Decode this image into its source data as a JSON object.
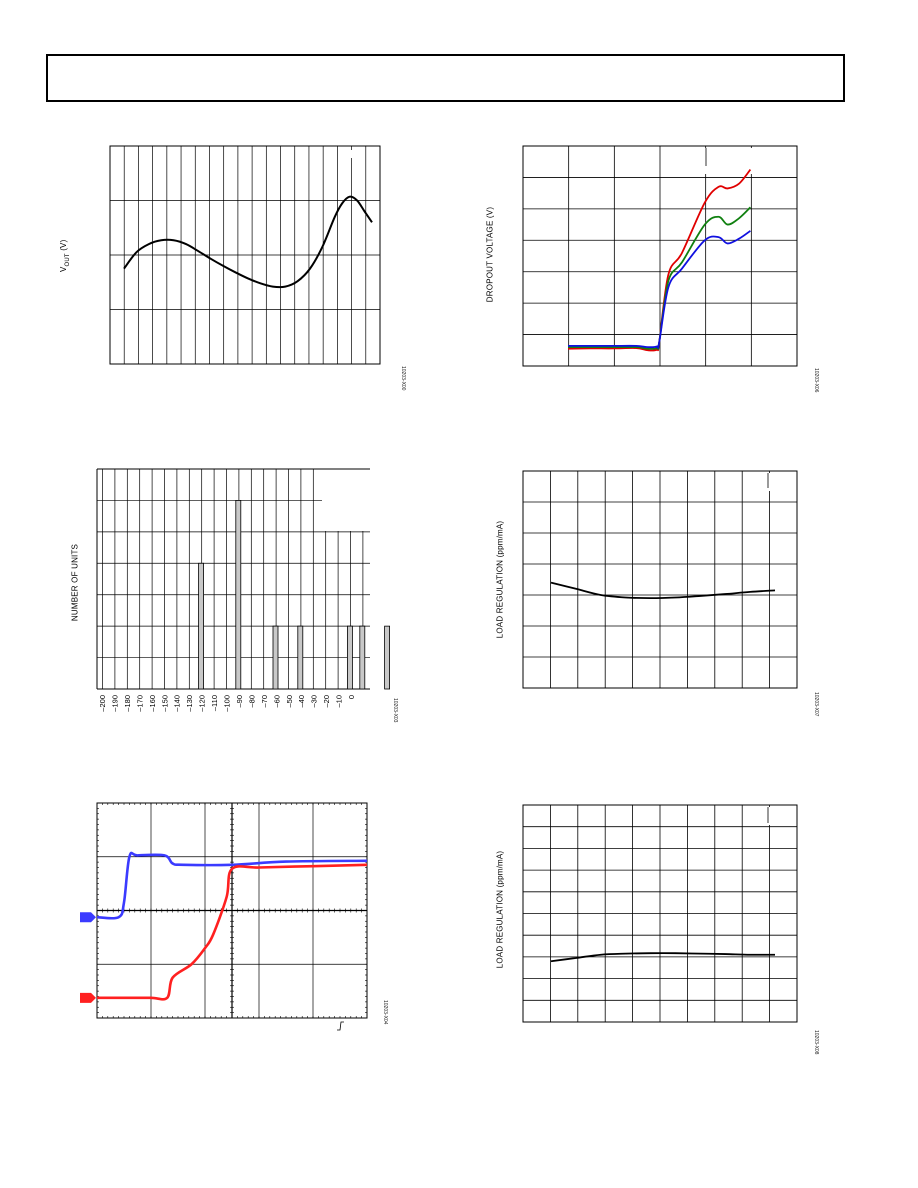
{
  "page": {
    "header_text": ""
  },
  "charts": {
    "vout": {
      "ylabel_main": "V",
      "ylabel_sub": "OUT",
      "ylabel_unit": " (V)",
      "fig_id": "10203-X00",
      "line_color": "#000000"
    },
    "dropout": {
      "ylabel": "DROPOUT VOLTAGE (V)",
      "fig_id": "10203-X06"
    },
    "hist": {
      "ylabel": "NUMBER OF UNITS",
      "fig_id": "10203-X03",
      "bar_color": "#c8c8c8"
    },
    "load1": {
      "ylabel": "LOAD REGULATION (ppm/mA)",
      "fig_id": "10203-X07"
    },
    "scope": {
      "fig_id": "10203-X04",
      "ch1_color": "#3b3bff",
      "ch2_color": "#ff2020"
    },
    "load2": {
      "ylabel": "LOAD REGULATION (ppm/mA)",
      "fig_id": "10203-X08"
    }
  },
  "chart_data": [
    {
      "type": "line",
      "title": "",
      "ylabel": "VOUT (V)",
      "xlabel": "",
      "xlim": [
        0,
        1
      ],
      "ylim": [
        0,
        4
      ],
      "grid": true,
      "series": [
        {
          "x": [
            0.0,
            0.05,
            0.1,
            0.15,
            0.2,
            0.25,
            0.3,
            0.35,
            0.4,
            0.45,
            0.5,
            0.55,
            0.6,
            0.65,
            0.7,
            0.75,
            0.8,
            0.85,
            0.88,
            0.91,
            0.94,
            0.97,
            1.0
          ],
          "y": [
            1.75,
            2.05,
            2.2,
            2.27,
            2.27,
            2.2,
            2.07,
            1.93,
            1.8,
            1.68,
            1.57,
            1.48,
            1.42,
            1.42,
            1.52,
            1.75,
            2.15,
            2.7,
            2.95,
            3.07,
            3.0,
            2.8,
            2.6
          ]
        }
      ]
    },
    {
      "type": "line",
      "title": "",
      "ylabel": "DROPOUT VOLTAGE (V)",
      "xlabel": "",
      "xlim": [
        0,
        5
      ],
      "ylim": [
        0,
        7
      ],
      "grid": true,
      "series": [
        {
          "color": "#e00000",
          "x": [
            0.0,
            0.5,
            1.0,
            1.5,
            1.75,
            1.95,
            2.0,
            2.2,
            2.5,
            3.0,
            3.3,
            3.5,
            3.75,
            4.0
          ],
          "y": [
            0.55,
            0.56,
            0.56,
            0.57,
            0.5,
            0.52,
            0.75,
            2.9,
            3.6,
            5.2,
            5.7,
            5.65,
            5.8,
            6.25
          ]
        },
        {
          "color": "#108010",
          "x": [
            0.0,
            0.5,
            1.0,
            1.5,
            1.75,
            1.95,
            2.0,
            2.2,
            2.5,
            3.0,
            3.3,
            3.5,
            3.75,
            4.0
          ],
          "y": [
            0.6,
            0.6,
            0.6,
            0.6,
            0.55,
            0.57,
            0.75,
            2.7,
            3.3,
            4.5,
            4.75,
            4.5,
            4.7,
            5.05
          ]
        },
        {
          "color": "#1010e0",
          "x": [
            0.0,
            0.5,
            1.0,
            1.5,
            1.75,
            1.95,
            2.0,
            2.2,
            2.5,
            3.0,
            3.3,
            3.5,
            3.75,
            4.0
          ],
          "y": [
            0.64,
            0.64,
            0.64,
            0.64,
            0.6,
            0.62,
            0.75,
            2.5,
            3.1,
            4.0,
            4.1,
            3.9,
            4.05,
            4.3
          ]
        }
      ]
    },
    {
      "type": "bar",
      "title": "",
      "ylabel": "NUMBER OF UNITS",
      "xlabel": "",
      "categories": [
        "-200",
        "-190",
        "-180",
        "-170",
        "-160",
        "-150",
        "-140",
        "-130",
        "-120",
        "-110",
        "-100",
        "-90",
        "-80",
        "-70",
        "-60",
        "-50",
        "-40",
        "-30",
        "-20",
        "-10",
        "0"
      ],
      "values": [
        0,
        0,
        0,
        0,
        4,
        0,
        0,
        6,
        0,
        0,
        2,
        0,
        2,
        0,
        0,
        0,
        2,
        2,
        0,
        2,
        0
      ],
      "ylim": [
        0,
        7
      ],
      "grid": true
    },
    {
      "type": "line",
      "title": "",
      "ylabel": "LOAD REGULATION (ppm/mA)",
      "xlabel": "",
      "xlim": [
        0,
        10
      ],
      "ylim": [
        0,
        7
      ],
      "grid": true,
      "series": [
        {
          "x": [
            0,
            1,
            2,
            3,
            4,
            5,
            6,
            7,
            8,
            9
          ],
          "y": [
            3.4,
            3.2,
            3.0,
            2.92,
            2.9,
            2.92,
            2.97,
            3.03,
            3.1,
            3.15
          ]
        }
      ]
    },
    {
      "type": "line",
      "title": "",
      "ylabel": "",
      "xlabel": "",
      "xlim": [
        0,
        10
      ],
      "ylim": [
        0,
        8
      ],
      "grid": true,
      "series": [
        {
          "name": "1",
          "color": "#3b3bff",
          "x": [
            0,
            0.8,
            1.0,
            1.2,
            1.5,
            2.5,
            2.8,
            3.2,
            5.0,
            7.0,
            10.0
          ],
          "y": [
            3.75,
            3.75,
            4.3,
            6.0,
            6.05,
            6.05,
            5.75,
            5.7,
            5.7,
            5.82,
            5.85
          ]
        },
        {
          "name": "2",
          "color": "#ff2020",
          "x": [
            0,
            1.0,
            2.0,
            2.6,
            2.8,
            3.5,
            4.0,
            4.3,
            4.8,
            5.0,
            6.0,
            8.0,
            10.0
          ],
          "y": [
            0.75,
            0.75,
            0.75,
            0.75,
            1.5,
            2.0,
            2.6,
            3.1,
            4.5,
            5.55,
            5.6,
            5.65,
            5.7
          ]
        }
      ]
    },
    {
      "type": "line",
      "title": "",
      "ylabel": "LOAD REGULATION (ppm/mA)",
      "xlabel": "",
      "xlim": [
        0,
        10
      ],
      "ylim": [
        0,
        10
      ],
      "grid": true,
      "series": [
        {
          "x": [
            0,
            1,
            2,
            3,
            4,
            5,
            6,
            7,
            8,
            9
          ],
          "y": [
            2.8,
            2.95,
            3.1,
            3.15,
            3.17,
            3.17,
            3.15,
            3.13,
            3.1,
            3.1
          ]
        }
      ]
    }
  ]
}
